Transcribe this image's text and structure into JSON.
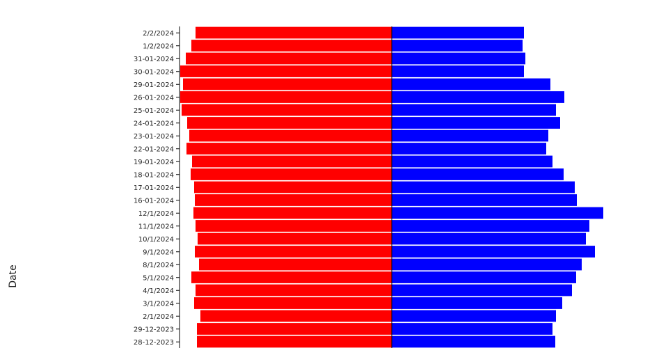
{
  "chart_data": {
    "type": "bar",
    "orientation": "horizontal",
    "layout": "diverging",
    "ylabel": "Date",
    "categories": [
      "2/2/2024",
      "1/2/2024",
      "31-01-2024",
      "30-01-2024",
      "29-01-2024",
      "26-01-2024",
      "25-01-2024",
      "24-01-2024",
      "23-01-2024",
      "22-01-2024",
      "19-01-2024",
      "18-01-2024",
      "17-01-2024",
      "16-01-2024",
      "12/1/2024",
      "11/1/2024",
      "10/1/2024",
      "9/1/2024",
      "8/1/2024",
      "5/1/2024",
      "4/1/2024",
      "3/1/2024",
      "2/1/2024",
      "29-12-2023",
      "28-12-2023"
    ],
    "series": [
      {
        "color": "#ff0000",
        "side": "left",
        "values": [
          282,
          288,
          296,
          304,
          300,
          304,
          302,
          294,
          291,
          295,
          287,
          289,
          284,
          283,
          285,
          282,
          279,
          283,
          277,
          288,
          282,
          284,
          275,
          280,
          280
        ]
      },
      {
        "color": "#0000ff",
        "side": "right",
        "values": [
          190,
          188,
          192,
          190,
          228,
          248,
          236,
          242,
          225,
          222,
          231,
          247,
          263,
          266,
          304,
          284,
          279,
          292,
          273,
          265,
          259,
          245,
          236,
          231,
          235
        ]
      }
    ],
    "xlim_left": [
      0,
      305
    ],
    "xlim_right": [
      0,
      305
    ],
    "grid": false,
    "legend": "none"
  }
}
